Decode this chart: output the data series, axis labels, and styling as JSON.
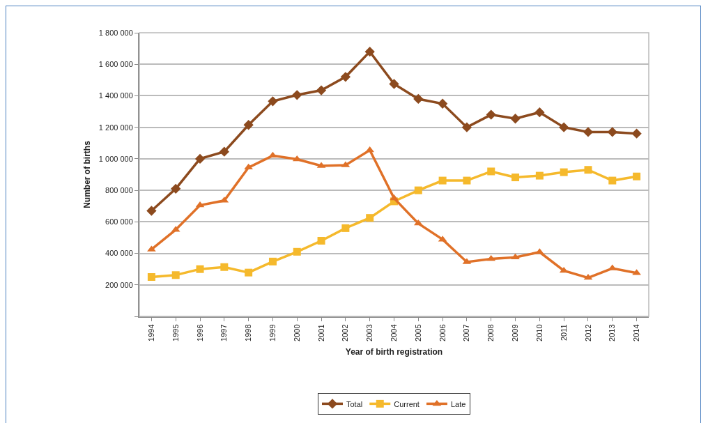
{
  "chart_data": {
    "type": "line",
    "xlabel": "Year of birth registration",
    "ylabel": "Number of births",
    "categories": [
      "1994",
      "1995",
      "1996",
      "1997",
      "1998",
      "1999",
      "2000",
      "2001",
      "2002",
      "2003",
      "2004",
      "2005",
      "2006",
      "2007",
      "2008",
      "2009",
      "2010",
      "2011",
      "2012",
      "2013",
      "2014"
    ],
    "series": [
      {
        "name": "Total",
        "color": "#8c4a1e",
        "marker": "diamond",
        "values": [
          670000,
          810000,
          1000000,
          1045000,
          1215000,
          1365000,
          1405000,
          1435000,
          1520000,
          1680000,
          1475000,
          1380000,
          1350000,
          1200000,
          1280000,
          1255000,
          1295000,
          1200000,
          1170000,
          1170000,
          1160000
        ]
      },
      {
        "name": "Current",
        "color": "#f5b92c",
        "marker": "square",
        "values": [
          250000,
          262000,
          300000,
          313000,
          278000,
          348000,
          410000,
          480000,
          560000,
          625000,
          730000,
          800000,
          862000,
          862000,
          920000,
          882000,
          893000,
          915000,
          930000,
          862000,
          888000
        ]
      },
      {
        "name": "Late",
        "color": "#e07128",
        "marker": "triangle",
        "values": [
          425000,
          550000,
          705000,
          735000,
          945000,
          1020000,
          997000,
          955000,
          960000,
          1055000,
          750000,
          590000,
          488000,
          345000,
          365000,
          375000,
          408000,
          290000,
          245000,
          305000,
          275000
        ]
      }
    ],
    "ylim": [
      0,
      1800000
    ],
    "yticks": [
      {
        "value": 0,
        "label": null
      },
      {
        "value": 200000,
        "label": "200 000"
      },
      {
        "value": 400000,
        "label": "400 000"
      },
      {
        "value": 600000,
        "label": "600 000"
      },
      {
        "value": 800000,
        "label": "800 000"
      },
      {
        "value": 1000000,
        "label": "1 000 000"
      },
      {
        "value": 1200000,
        "label": "1 200 000"
      },
      {
        "value": 1400000,
        "label": "1 400 000"
      },
      {
        "value": 1600000,
        "label": "1 600 000"
      },
      {
        "value": 1800000,
        "label": "1 800 000"
      }
    ],
    "grid": "y",
    "legend": "bottom",
    "line_style": "solid"
  }
}
